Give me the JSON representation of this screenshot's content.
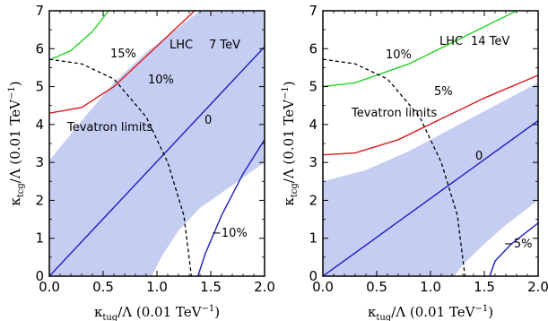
{
  "chart_data": [
    {
      "type": "line",
      "xlabel": "κ_tug/Λ (0.01 TeV⁻¹)",
      "ylabel": "κ_tcg/Λ (0.01 TeV⁻¹)",
      "xlim": [
        0,
        2
      ],
      "ylim": [
        0,
        7
      ],
      "xticks": [
        "0.0",
        "0.5",
        "1.0",
        "1.5",
        "2.0"
      ],
      "yticks": [
        "0",
        "1",
        "2",
        "3",
        "4",
        "5",
        "6",
        "7"
      ],
      "grid": false,
      "band": {
        "color": "#c5cdf2",
        "upper": [
          [
            0,
            3.05
          ],
          [
            0.3,
            4.1
          ],
          [
            0.6,
            5.1
          ],
          [
            0.9,
            5.9
          ],
          [
            1.2,
            6.55
          ],
          [
            1.4,
            7.0
          ]
        ],
        "lower": [
          [
            0.95,
            0
          ],
          [
            1.05,
            0.55
          ],
          [
            1.2,
            1.2
          ],
          [
            1.4,
            1.8
          ],
          [
            1.6,
            2.2
          ],
          [
            1.8,
            2.6
          ],
          [
            2.0,
            3.0
          ]
        ]
      },
      "series": [
        {
          "label": "15%",
          "color": "#21d421",
          "points": [
            [
              0,
              5.7
            ],
            [
              0.2,
              5.95
            ],
            [
              0.4,
              6.45
            ],
            [
              0.55,
              7.0
            ]
          ]
        },
        {
          "label": "10%",
          "color": "#e01818",
          "points": [
            [
              0,
              4.3
            ],
            [
              0.3,
              4.45
            ],
            [
              0.6,
              5.0
            ],
            [
              0.9,
              5.8
            ],
            [
              1.2,
              6.6
            ],
            [
              1.35,
              7.0
            ]
          ]
        },
        {
          "label": "0",
          "color": "#1c1cc8",
          "points": [
            [
              0,
              0
            ],
            [
              2.0,
              6.05
            ]
          ]
        },
        {
          "label": "−10%",
          "color": "#1c1cc8",
          "points": [
            [
              1.38,
              0
            ],
            [
              1.45,
              0.6
            ],
            [
              1.6,
              1.6
            ],
            [
              1.8,
              2.7
            ],
            [
              2.0,
              3.6
            ]
          ]
        }
      ],
      "tevatron_limit": {
        "label": "Tevatron limits",
        "points": [
          [
            0,
            5.72
          ],
          [
            0.3,
            5.6
          ],
          [
            0.6,
            5.2
          ],
          [
            0.9,
            4.2
          ],
          [
            1.1,
            3.0
          ],
          [
            1.25,
            1.6
          ],
          [
            1.32,
            0
          ]
        ]
      },
      "annotations": [
        "LHC",
        "7 TeV",
        "15%",
        "10%",
        "0",
        "−10%",
        "Tevatron limits"
      ]
    },
    {
      "type": "line",
      "xlabel": "κ_tug/Λ (0.01 TeV⁻¹)",
      "ylabel": "κ_tcg/Λ (0.01 TeV⁻¹)",
      "xlim": [
        0,
        2
      ],
      "ylim": [
        0,
        7
      ],
      "xticks": [
        "0.0",
        "0.5",
        "1.0",
        "1.5",
        "2.0"
      ],
      "yticks": [
        "0",
        "1",
        "2",
        "3",
        "4",
        "5",
        "6",
        "7"
      ],
      "grid": false,
      "band": {
        "color": "#c5cdf2",
        "upper": [
          [
            0,
            2.5
          ],
          [
            0.4,
            2.8
          ],
          [
            0.8,
            3.3
          ],
          [
            1.2,
            3.9
          ],
          [
            1.6,
            4.5
          ],
          [
            2.0,
            5.1
          ]
        ],
        "lower": [
          [
            1.22,
            0
          ],
          [
            1.3,
            0.3
          ],
          [
            1.5,
            0.85
          ],
          [
            1.7,
            1.35
          ],
          [
            2.0,
            2.0
          ]
        ]
      },
      "series": [
        {
          "label": "10%",
          "color": "#21d421",
          "points": [
            [
              0,
              5.0
            ],
            [
              0.3,
              5.1
            ],
            [
              0.8,
              5.6
            ],
            [
              1.3,
              6.3
            ],
            [
              1.8,
              7.0
            ]
          ]
        },
        {
          "label": "5%",
          "color": "#e01818",
          "points": [
            [
              0,
              3.2
            ],
            [
              0.3,
              3.25
            ],
            [
              0.7,
              3.6
            ],
            [
              1.1,
              4.15
            ],
            [
              1.5,
              4.7
            ],
            [
              2.0,
              5.3
            ]
          ]
        },
        {
          "label": "0",
          "color": "#1c1cc8",
          "points": [
            [
              0,
              0
            ],
            [
              2.0,
              4.1
            ]
          ]
        },
        {
          "label": "−5%",
          "color": "#1c1cc8",
          "points": [
            [
              1.55,
              0
            ],
            [
              1.6,
              0.4
            ],
            [
              1.75,
              0.85
            ],
            [
              2.0,
              1.4
            ]
          ]
        }
      ],
      "tevatron_limit": {
        "label": "Tevatron limits",
        "points": [
          [
            0,
            5.72
          ],
          [
            0.3,
            5.6
          ],
          [
            0.6,
            5.2
          ],
          [
            0.9,
            4.2
          ],
          [
            1.1,
            3.0
          ],
          [
            1.25,
            1.6
          ],
          [
            1.32,
            0
          ]
        ]
      },
      "annotations": [
        "LHC",
        "14 TeV",
        "10%",
        "5%",
        "0",
        "−5%",
        "Tevatron limits"
      ]
    }
  ]
}
